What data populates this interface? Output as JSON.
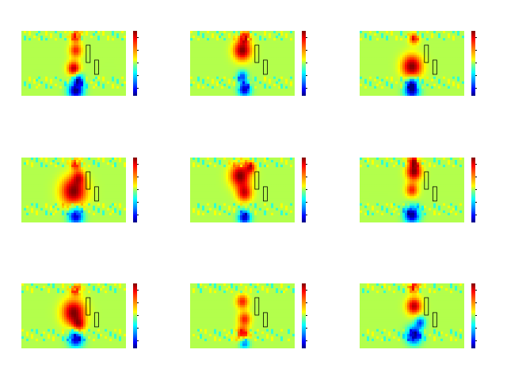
{
  "chart_data": {
    "type": "heatmap",
    "layout": {
      "rows": 3,
      "cols": 3
    },
    "colormap": "jet",
    "background_level": 0.55,
    "colorbar_ticks": 5,
    "panels": [
      {
        "id": "p1",
        "blobs": [
          {
            "cx": 0.52,
            "cy": 0.08,
            "s": 0.04,
            "v": 0.9
          },
          {
            "cx": 0.52,
            "cy": 0.3,
            "s": 0.05,
            "v": 0.85
          },
          {
            "cx": 0.5,
            "cy": 0.58,
            "s": 0.05,
            "v": 0.95
          },
          {
            "cx": 0.52,
            "cy": 0.92,
            "s": 0.06,
            "v": 0.0
          },
          {
            "cx": 0.55,
            "cy": 0.75,
            "s": 0.04,
            "v": 0.15
          }
        ]
      },
      {
        "id": "p2",
        "blobs": [
          {
            "cx": 0.5,
            "cy": 0.3,
            "s": 0.07,
            "v": 1.0
          },
          {
            "cx": 0.52,
            "cy": 0.1,
            "s": 0.04,
            "v": 0.9
          },
          {
            "cx": 0.52,
            "cy": 0.9,
            "s": 0.05,
            "v": 0.05
          },
          {
            "cx": 0.5,
            "cy": 0.7,
            "s": 0.04,
            "v": 0.2
          }
        ]
      },
      {
        "id": "p3",
        "blobs": [
          {
            "cx": 0.5,
            "cy": 0.55,
            "s": 0.08,
            "v": 1.0
          },
          {
            "cx": 0.52,
            "cy": 0.12,
            "s": 0.04,
            "v": 0.85
          },
          {
            "cx": 0.5,
            "cy": 0.92,
            "s": 0.06,
            "v": 0.05
          },
          {
            "cx": 0.5,
            "cy": 0.8,
            "s": 0.04,
            "v": 0.2
          }
        ]
      },
      {
        "id": "p4",
        "blobs": [
          {
            "cx": 0.5,
            "cy": 0.52,
            "s": 0.1,
            "v": 1.0
          },
          {
            "cx": 0.52,
            "cy": 0.1,
            "s": 0.04,
            "v": 0.85
          },
          {
            "cx": 0.52,
            "cy": 0.9,
            "s": 0.06,
            "v": 0.05
          },
          {
            "cx": 0.55,
            "cy": 0.3,
            "s": 0.05,
            "v": 0.8
          }
        ]
      },
      {
        "id": "p5",
        "blobs": [
          {
            "cx": 0.48,
            "cy": 0.28,
            "s": 0.08,
            "v": 1.0
          },
          {
            "cx": 0.52,
            "cy": 0.55,
            "s": 0.06,
            "v": 0.9
          },
          {
            "cx": 0.52,
            "cy": 0.92,
            "s": 0.05,
            "v": 0.05
          },
          {
            "cx": 0.58,
            "cy": 0.15,
            "s": 0.04,
            "v": 0.85
          }
        ]
      },
      {
        "id": "p6",
        "blobs": [
          {
            "cx": 0.52,
            "cy": 0.22,
            "s": 0.06,
            "v": 1.0
          },
          {
            "cx": 0.5,
            "cy": 0.5,
            "s": 0.05,
            "v": 0.85
          },
          {
            "cx": 0.5,
            "cy": 0.88,
            "s": 0.06,
            "v": 0.0
          },
          {
            "cx": 0.52,
            "cy": 0.05,
            "s": 0.04,
            "v": 0.9
          }
        ]
      },
      {
        "id": "p7",
        "blobs": [
          {
            "cx": 0.5,
            "cy": 0.45,
            "s": 0.09,
            "v": 1.0
          },
          {
            "cx": 0.52,
            "cy": 0.1,
            "s": 0.04,
            "v": 0.85
          },
          {
            "cx": 0.52,
            "cy": 0.85,
            "s": 0.06,
            "v": 0.05
          },
          {
            "cx": 0.55,
            "cy": 0.65,
            "s": 0.05,
            "v": 0.85
          }
        ]
      },
      {
        "id": "p8",
        "blobs": [
          {
            "cx": 0.5,
            "cy": 0.28,
            "s": 0.05,
            "v": 0.85
          },
          {
            "cx": 0.52,
            "cy": 0.55,
            "s": 0.05,
            "v": 0.85
          },
          {
            "cx": 0.5,
            "cy": 0.78,
            "s": 0.05,
            "v": 0.9
          },
          {
            "cx": 0.52,
            "cy": 0.92,
            "s": 0.04,
            "v": 0.2
          }
        ]
      },
      {
        "id": "p9",
        "blobs": [
          {
            "cx": 0.52,
            "cy": 0.05,
            "s": 0.04,
            "v": 0.9
          },
          {
            "cx": 0.52,
            "cy": 0.35,
            "s": 0.06,
            "v": 0.95
          },
          {
            "cx": 0.52,
            "cy": 0.8,
            "s": 0.06,
            "v": 0.0
          },
          {
            "cx": 0.58,
            "cy": 0.6,
            "s": 0.04,
            "v": 0.2
          }
        ]
      }
    ]
  }
}
